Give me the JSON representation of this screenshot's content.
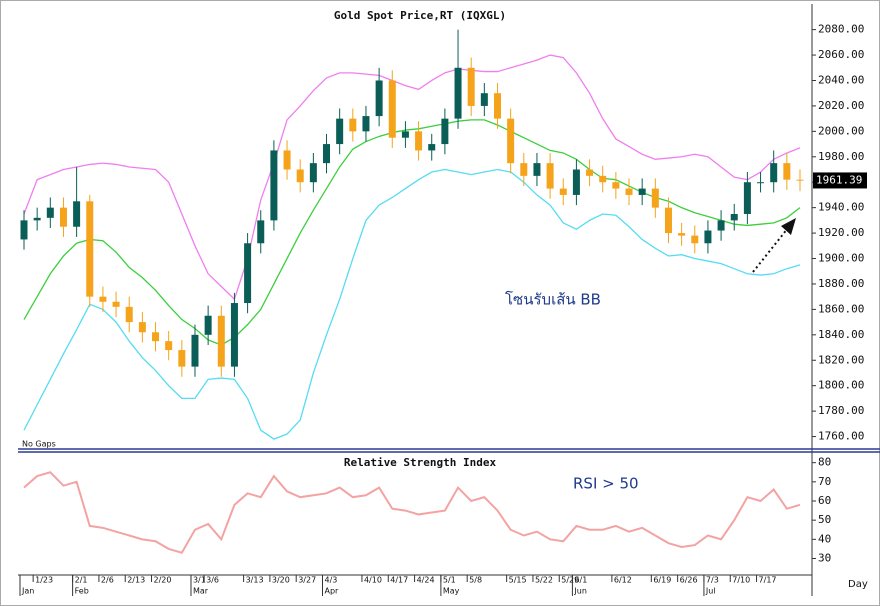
{
  "chart_data": [
    {
      "type": "candlestick",
      "title": "Gold Spot Price,RT (IQXGL)",
      "note": "No Gaps",
      "annotations": [
        "โซนรับเส้น BB"
      ],
      "categories": [
        null,
        "1/23",
        null,
        null,
        "2/1",
        null,
        "2/6",
        null,
        "2/13",
        null,
        "2/20",
        null,
        null,
        "3/1",
        "3/6",
        null,
        null,
        "3/13",
        null,
        "3/20",
        null,
        "3/27",
        null,
        "4/3",
        null,
        null,
        "4/10",
        null,
        "4/17",
        null,
        "4/24",
        null,
        "5/1",
        null,
        "5/8",
        null,
        null,
        "5/15",
        null,
        "5/22",
        null,
        "5/29",
        "6/1",
        null,
        null,
        "6/12",
        null,
        null,
        "6/19",
        null,
        "6/26",
        null,
        "7/3",
        null,
        "7/10",
        null,
        "7/17",
        null,
        null,
        null
      ],
      "months": [
        "Jan",
        null,
        null,
        null,
        "Feb",
        null,
        null,
        null,
        null,
        null,
        null,
        null,
        null,
        "Mar",
        null,
        null,
        null,
        null,
        null,
        null,
        null,
        null,
        null,
        "Apr",
        null,
        null,
        null,
        null,
        null,
        null,
        null,
        null,
        "May",
        null,
        null,
        null,
        null,
        null,
        null,
        null,
        null,
        null,
        "Jun",
        null,
        null,
        null,
        null,
        null,
        null,
        null,
        null,
        null,
        "Jul",
        null,
        null,
        null,
        null,
        null,
        null,
        null
      ],
      "x_unit": "Day",
      "open": [
        1915,
        1930,
        1932,
        1940,
        1925,
        1945,
        1870,
        1866,
        1862,
        1850,
        1842,
        1835,
        1828,
        1815,
        1840,
        1855,
        1815,
        1865,
        1912,
        1930,
        1985,
        1970,
        1960,
        1975,
        1990,
        2010,
        2000,
        2012,
        2040,
        1995,
        2000,
        1985,
        1990,
        2010,
        2050,
        2020,
        2030,
        2010,
        1975,
        1965,
        1975,
        1955,
        1950,
        1970,
        1965,
        1960,
        1955,
        1950,
        1955,
        1940,
        1920,
        1918,
        1912,
        1922,
        1930,
        1935,
        1960,
        1960,
        1975,
        1962
      ],
      "high": [
        1938,
        1940,
        1948,
        1948,
        1972,
        1950,
        1878,
        1874,
        1870,
        1858,
        1850,
        1843,
        1836,
        1848,
        1863,
        1863,
        1873,
        1920,
        1938,
        1993,
        1993,
        1978,
        1983,
        1998,
        2018,
        2018,
        2020,
        2050,
        2048,
        2008,
        2008,
        1998,
        2018,
        2080,
        2058,
        2038,
        2038,
        2018,
        1983,
        1983,
        1983,
        1963,
        1978,
        1978,
        1973,
        1968,
        1963,
        1963,
        1963,
        1948,
        1928,
        1926,
        1930,
        1938,
        1943,
        1968,
        1968,
        1985,
        1983,
        1970
      ],
      "low": [
        1907,
        1922,
        1924,
        1917,
        1917,
        1862,
        1858,
        1854,
        1842,
        1834,
        1827,
        1820,
        1807,
        1807,
        1832,
        1807,
        1807,
        1857,
        1904,
        1922,
        1962,
        1952,
        1952,
        1967,
        1982,
        1992,
        1992,
        2004,
        1987,
        1987,
        1977,
        1977,
        1982,
        2002,
        2012,
        2012,
        2002,
        1967,
        1957,
        1957,
        1947,
        1942,
        1942,
        1957,
        1952,
        1947,
        1942,
        1942,
        1932,
        1912,
        1910,
        1904,
        1904,
        1914,
        1922,
        1927,
        1952,
        1952,
        1954,
        1953
      ],
      "close": [
        1930,
        1932,
        1940,
        1925,
        1945,
        1870,
        1866,
        1862,
        1850,
        1842,
        1835,
        1828,
        1815,
        1840,
        1855,
        1815,
        1865,
        1912,
        1930,
        1985,
        1970,
        1960,
        1975,
        1990,
        2010,
        2000,
        2012,
        2040,
        1995,
        2000,
        1985,
        1990,
        2010,
        2050,
        2020,
        2030,
        2010,
        1975,
        1965,
        1975,
        1955,
        1950,
        1970,
        1965,
        1960,
        1955,
        1950,
        1955,
        1940,
        1920,
        1918,
        1912,
        1922,
        1930,
        1935,
        1960,
        1960,
        1975,
        1962,
        1961.39
      ],
      "up_color": "#0b5e57",
      "down_color": "#f5a31a",
      "bands": [
        {
          "color": "#f07ef0",
          "values": [
            1935,
            1962,
            1966,
            1970,
            1972,
            1974,
            1975,
            1974,
            1972,
            1971,
            1970,
            1960,
            1935,
            1910,
            1888,
            1878,
            1868,
            1900,
            1946,
            1975,
            2009,
            2020,
            2032,
            2042,
            2046,
            2046,
            2045,
            2044,
            2040,
            2036,
            2033,
            2040,
            2046,
            2049,
            2048,
            2047,
            2047,
            2050,
            2053,
            2056,
            2060,
            2058,
            2046,
            2030,
            2010,
            1994,
            1988,
            1982,
            1978,
            1979,
            1980,
            1982,
            1980,
            1972,
            1964,
            1962,
            1968,
            1978,
            1983,
            1987
          ]
        },
        {
          "color": "#3ccf3c",
          "values": [
            1852,
            1870,
            1888,
            1902,
            1912,
            1915,
            1914,
            1905,
            1893,
            1885,
            1875,
            1863,
            1852,
            1845,
            1836,
            1832,
            1838,
            1848,
            1860,
            1880,
            1900,
            1920,
            1938,
            1955,
            1972,
            1986,
            1992,
            1996,
            1999,
            2001,
            2002,
            2004,
            2006,
            2008,
            2009,
            2009,
            2005,
            2000,
            1995,
            1990,
            1985,
            1983,
            1978,
            1970,
            1963,
            1962,
            1957,
            1952,
            1948,
            1945,
            1940,
            1936,
            1933,
            1930,
            1927,
            1926,
            1927,
            1928,
            1932,
            1940
          ]
        },
        {
          "color": "#55dcf2",
          "values": [
            1765,
            1785,
            1805,
            1825,
            1844,
            1864,
            1860,
            1850,
            1835,
            1822,
            1812,
            1800,
            1790,
            1790,
            1805,
            1806,
            1805,
            1790,
            1765,
            1758,
            1762,
            1773,
            1810,
            1840,
            1868,
            1900,
            1930,
            1942,
            1948,
            1955,
            1962,
            1968,
            1970,
            1968,
            1966,
            1968,
            1970,
            1968,
            1960,
            1950,
            1942,
            1928,
            1923,
            1930,
            1935,
            1934,
            1925,
            1915,
            1908,
            1902,
            1903,
            1900,
            1898,
            1896,
            1892,
            1888,
            1887,
            1888,
            1892,
            1895
          ]
        }
      ],
      "ylim": [
        1751,
        2097
      ],
      "yticks": [
        {
          "value": 1760,
          "label": "1760.00"
        },
        {
          "value": 1780,
          "label": "1780.00"
        },
        {
          "value": 1800,
          "label": "1800.00"
        },
        {
          "value": 1820,
          "label": "1820.00"
        },
        {
          "value": 1840,
          "label": "1840.00"
        },
        {
          "value": 1860,
          "label": "1860.00"
        },
        {
          "value": 1880,
          "label": "1880.00"
        },
        {
          "value": 1900,
          "label": "1900.00"
        },
        {
          "value": 1920,
          "label": "1920.00"
        },
        {
          "value": 1940,
          "label": "1940.00"
        },
        {
          "value": 1960,
          "label": "1960.00"
        },
        {
          "value": 1980,
          "label": "1980.00"
        },
        {
          "value": 2000,
          "label": "2000.00"
        },
        {
          "value": 2020,
          "label": "2020.00"
        },
        {
          "value": 2040,
          "label": "2040.00"
        },
        {
          "value": 2060,
          "label": "2060.00"
        },
        {
          "value": 2080,
          "label": "2080.00"
        }
      ]
    },
    {
      "type": "line",
      "title": "Relative Strength Index",
      "annotations": [
        "RSI > 50"
      ],
      "color": "#f3a3a3",
      "values": [
        67,
        73,
        75,
        68,
        70,
        47,
        46,
        44,
        42,
        40,
        39,
        35,
        33,
        45,
        48,
        40,
        58,
        64,
        62,
        73,
        65,
        62,
        63,
        64,
        67,
        62,
        63,
        67,
        56,
        55,
        53,
        54,
        55,
        67,
        60,
        62,
        55,
        45,
        42,
        44,
        40,
        39,
        47,
        45,
        45,
        47,
        44,
        46,
        42,
        38,
        36,
        37,
        42,
        40,
        50,
        62,
        60,
        66,
        56,
        58
      ],
      "ylim": [
        24,
        84
      ],
      "yticks": [
        30,
        40,
        50,
        60,
        70,
        80
      ]
    }
  ]
}
